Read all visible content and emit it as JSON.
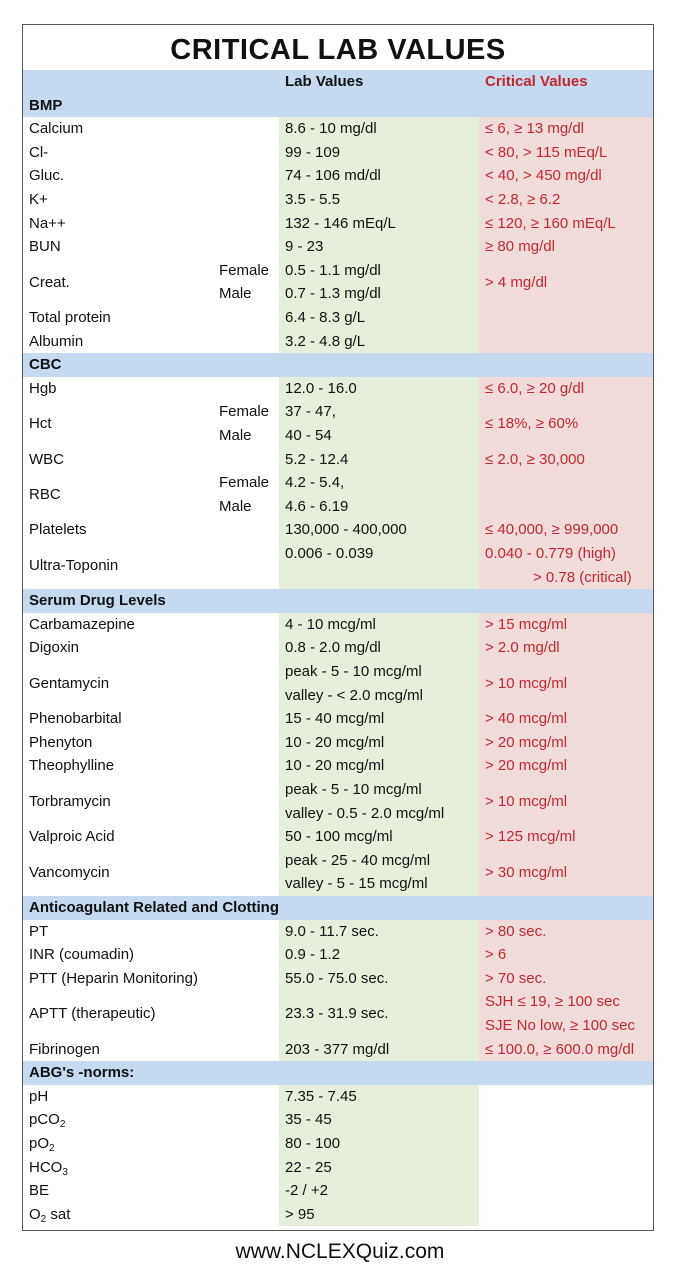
{
  "title": "CRITICAL LAB VALUES",
  "headers": {
    "lab": "Lab Values",
    "critical": "Critical Values"
  },
  "sections": [
    {
      "name": "BMP",
      "rows": [
        {
          "name": "Calcium",
          "lab": [
            "8.6 - 10 mg/dl"
          ],
          "critical": [
            "≤ 6, ≥ 13 mg/dl"
          ]
        },
        {
          "name": "Cl-",
          "lab": [
            "99 - 109"
          ],
          "critical": [
            "< 80, > 115 mEq/L"
          ]
        },
        {
          "name": "Gluc.",
          "lab": [
            "74 - 106 md/dl"
          ],
          "critical": [
            "< 40, > 450 mg/dl"
          ]
        },
        {
          "name": "K+",
          "lab": [
            "3.5 - 5.5"
          ],
          "critical": [
            "< 2.8, ≥ 6.2"
          ]
        },
        {
          "name": "Na++",
          "lab": [
            "132 - 146 mEq/L"
          ],
          "critical": [
            "≤ 120, ≥ 160 mEq/L"
          ]
        },
        {
          "name": "BUN",
          "lab": [
            "9 - 23"
          ],
          "critical": [
            "≥ 80 mg/dl"
          ]
        },
        {
          "name": "Creat.",
          "sub": [
            "Female",
            "Male"
          ],
          "lab": [
            "0.5 - 1.1 mg/dl",
            "0.7 - 1.3 mg/dl"
          ],
          "critical": [
            "> 4 mg/dl"
          ]
        },
        {
          "name": "Total protein",
          "lab": [
            "6.4 - 8.3 g/L"
          ],
          "critical": []
        },
        {
          "name": "Albumin",
          "lab": [
            "3.2 - 4.8 g/L"
          ],
          "critical": []
        }
      ]
    },
    {
      "name": "CBC",
      "rows": [
        {
          "name": "Hgb",
          "lab": [
            "12.0 - 16.0"
          ],
          "critical": [
            "≤ 6.0, ≥ 20 g/dl"
          ]
        },
        {
          "name": "Hct",
          "sub": [
            "Female",
            "Male"
          ],
          "lab": [
            "37 - 47,",
            "40 - 54"
          ],
          "critical": [
            "≤ 18%, ≥ 60%"
          ]
        },
        {
          "name": "WBC",
          "lab": [
            "5.2 - 12.4"
          ],
          "critical": [
            "≤ 2.0, ≥ 30,000"
          ]
        },
        {
          "name": "RBC",
          "sub": [
            "Female",
            "Male"
          ],
          "lab": [
            "4.2 - 5.4,",
            "4.6 - 6.19"
          ],
          "critical": []
        },
        {
          "name": "Platelets",
          "lab": [
            "130,000 - 400,000"
          ],
          "critical": [
            "≤ 40,000, ≥ 999,000"
          ]
        },
        {
          "name": "Ultra-Toponin",
          "lab": [
            "0.006 - 0.039"
          ],
          "lab_top": true,
          "critical": [
            "0.040 - 0.779 (high)",
            "> 0.78 (critical)"
          ],
          "crit_indent": [
            0,
            1
          ]
        }
      ]
    },
    {
      "name": "Serum Drug Levels",
      "rows": [
        {
          "name": "Carbamazepine",
          "lab": [
            "4 - 10 mcg/ml"
          ],
          "critical": [
            "> 15 mcg/ml"
          ]
        },
        {
          "name": "Digoxin",
          "lab": [
            "0.8 - 2.0 mg/dl"
          ],
          "critical": [
            "> 2.0 mg/dl"
          ]
        },
        {
          "name": "Gentamycin",
          "lab": [
            "peak -  5 - 10 mcg/ml",
            "valley -  < 2.0 mcg/ml"
          ],
          "critical": [
            "> 10 mcg/ml"
          ]
        },
        {
          "name": "Phenobarbital",
          "lab": [
            "15 - 40 mcg/ml"
          ],
          "critical": [
            "> 40 mcg/ml"
          ]
        },
        {
          "name": "Phenyton",
          "lab": [
            "10 - 20 mcg/ml"
          ],
          "critical": [
            "> 20 mcg/ml"
          ]
        },
        {
          "name": "Theophylline",
          "lab": [
            "10 - 20 mcg/ml"
          ],
          "critical": [
            "> 20 mcg/ml"
          ]
        },
        {
          "name": "Torbramycin",
          "lab": [
            "peak -  5 - 10 mcg/ml",
            "valley -  0.5 - 2.0 mcg/ml"
          ],
          "critical": [
            "> 10 mcg/ml"
          ]
        },
        {
          "name": "Valproic Acid",
          "lab": [
            "50 - 100 mcg/ml"
          ],
          "critical": [
            "> 125 mcg/ml"
          ]
        },
        {
          "name": "Vancomycin",
          "lab": [
            "peak -  25 - 40 mcg/ml",
            "valley -  5 - 15 mcg/ml"
          ],
          "critical": [
            "> 30 mcg/ml"
          ]
        }
      ]
    },
    {
      "name": "Anticoagulant Related and Clotting",
      "rows": [
        {
          "name": "PT",
          "lab": [
            "9.0 - 11.7 sec."
          ],
          "critical": [
            "> 80 sec."
          ]
        },
        {
          "name": "INR (coumadin)",
          "lab": [
            "0.9 - 1.2"
          ],
          "critical": [
            "> 6"
          ]
        },
        {
          "name": "PTT (Heparin Monitoring)",
          "lab": [
            "55.0 - 75.0 sec."
          ],
          "critical": [
            "> 70 sec."
          ]
        },
        {
          "name": "APTT (therapeutic)",
          "lab": [
            "23.3 - 31.9 sec."
          ],
          "critical": [
            "SJH   ≤ 19, ≥ 100 sec",
            "SJE   No low, ≥ 100 sec"
          ]
        },
        {
          "name": "Fibrinogen",
          "lab": [
            "203 - 377 mg/dl"
          ],
          "critical": [
            "≤ 100.0, ≥ 600.0 mg/dl"
          ]
        }
      ]
    },
    {
      "name": "ABG's -norms:",
      "no_critical_bg": true,
      "rows": [
        {
          "name": "pH",
          "lab": [
            "7.35 - 7.45"
          ],
          "critical": []
        },
        {
          "name": "pCO",
          "name_sub": "2",
          "lab": [
            "35 - 45"
          ],
          "critical": []
        },
        {
          "name": "pO",
          "name_sub": "2",
          "lab": [
            "80 - 100"
          ],
          "critical": []
        },
        {
          "name": "HCO",
          "name_sub": "3",
          "lab": [
            "22 - 25"
          ],
          "critical": []
        },
        {
          "name": "BE",
          "lab": [
            "-2 / +2"
          ],
          "critical": []
        },
        {
          "name": "O",
          "name_sub": "2",
          "name_after": " sat",
          "lab": [
            "> 95"
          ],
          "critical": []
        }
      ]
    }
  ],
  "footer": "www.NCLEXQuiz.com",
  "colors": {
    "header_band": "#c5d9ef",
    "lab_column": "#e6efdb",
    "critical_column": "#f2dcdb",
    "critical_text": "#c0282d"
  }
}
